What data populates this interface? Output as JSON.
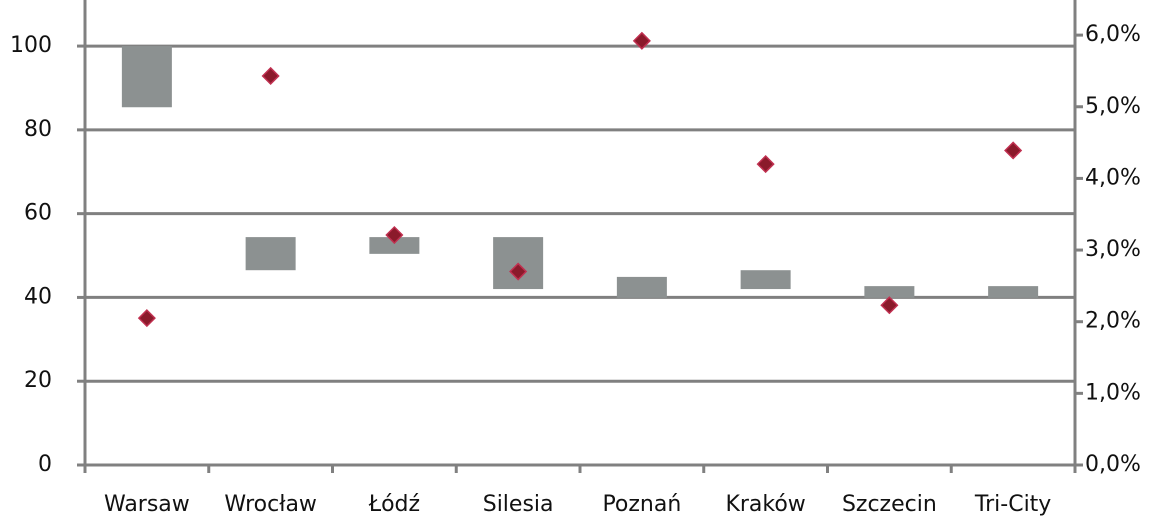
{
  "chart_data": {
    "type": "floating-bar-scatter",
    "categories": [
      "Warsaw",
      "Wrocław",
      "Łódź",
      "Silesia",
      "Poznań",
      "Kraków",
      "Szczecin",
      "Tri-City"
    ],
    "series": [
      {
        "type": "bar",
        "color": "#8c9191",
        "low": [
          85.4,
          46.5,
          50.4,
          42,
          39.9,
          42,
          39.9,
          39.9
        ],
        "high": [
          100,
          54.4,
          54.4,
          54.4,
          44.9,
          46.5,
          42.7,
          42.7
        ]
      },
      {
        "type": "scatter",
        "axis": "y2",
        "color": "#8b1a2b",
        "values": [
          2.05,
          5.43,
          3.21,
          2.7,
          5.92,
          4.2,
          2.23,
          4.39
        ]
      }
    ],
    "ylim": [
      0,
      111
    ],
    "yticks": [
      0,
      20,
      40,
      60,
      80,
      100
    ],
    "y2lim": [
      0,
      6.49
    ],
    "y2ticks": [
      {
        "value": 0,
        "label": "0,0%"
      },
      {
        "value": 1,
        "label": "1,0%"
      },
      {
        "value": 2,
        "label": "2,0%"
      },
      {
        "value": 3,
        "label": "3,0%"
      },
      {
        "value": 4,
        "label": "4,0%"
      },
      {
        "value": 5,
        "label": "5,0%"
      },
      {
        "value": 6,
        "label": "6,0%"
      }
    ],
    "grid": true
  }
}
